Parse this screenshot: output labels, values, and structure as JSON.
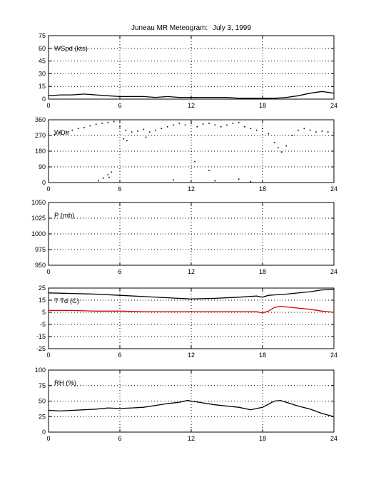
{
  "figure": {
    "title_station": "Juneau MR Meteogram:",
    "title_date": "July   3, 1999"
  },
  "chart_data": [
    {
      "type": "line",
      "label": "WSpd (kts)",
      "xlim": [
        0,
        24
      ],
      "ylim": [
        0,
        75
      ],
      "xticks": [
        "0",
        "6",
        "12",
        "18",
        "24"
      ],
      "yticks": [
        "0",
        "15",
        "30",
        "45",
        "60",
        "75"
      ],
      "grid": true,
      "series": [
        {
          "color": "#000000",
          "points": [
            [
              0,
              4
            ],
            [
              1,
              5
            ],
            [
              2,
              5
            ],
            [
              3,
              6
            ],
            [
              4,
              5
            ],
            [
              5,
              4
            ],
            [
              6,
              3
            ],
            [
              7,
              3
            ],
            [
              8,
              3
            ],
            [
              9,
              2
            ],
            [
              10,
              3
            ],
            [
              11,
              2
            ],
            [
              12,
              2
            ],
            [
              13,
              2
            ],
            [
              14,
              2
            ],
            [
              15,
              2
            ],
            [
              16,
              1
            ],
            [
              17,
              1
            ],
            [
              18,
              1
            ],
            [
              19,
              1
            ],
            [
              20,
              2
            ],
            [
              21,
              4
            ],
            [
              22,
              7
            ],
            [
              23,
              9
            ],
            [
              23.5,
              8
            ],
            [
              24,
              7
            ]
          ]
        }
      ]
    },
    {
      "type": "scatter",
      "label": "WDir",
      "xlim": [
        0,
        24
      ],
      "ylim": [
        0,
        360
      ],
      "xticks": [
        "0",
        "6",
        "12",
        "18",
        "24"
      ],
      "yticks": [
        "0",
        "90",
        "180",
        "270",
        "360"
      ],
      "grid": true,
      "series": [
        {
          "color": "#000000",
          "points": [
            [
              0,
              280
            ],
            [
              0.5,
              275
            ],
            [
              1,
              285
            ],
            [
              1.5,
              290
            ],
            [
              2,
              300
            ],
            [
              2.5,
              310
            ],
            [
              3,
              315
            ],
            [
              3.5,
              325
            ],
            [
              4,
              335
            ],
            [
              4.5,
              340
            ],
            [
              5,
              345
            ],
            [
              5.5,
              350
            ],
            [
              6,
              320
            ],
            [
              6.5,
              300
            ],
            [
              7,
              290
            ],
            [
              7.5,
              295
            ],
            [
              8,
              305
            ],
            [
              8.5,
              290
            ],
            [
              9,
              300
            ],
            [
              9.5,
              310
            ],
            [
              10,
              320
            ],
            [
              10.5,
              330
            ],
            [
              11,
              340
            ],
            [
              11.5,
              330
            ],
            [
              12,
              340
            ],
            [
              12.5,
              320
            ],
            [
              13,
              335
            ],
            [
              13.5,
              340
            ],
            [
              14,
              330
            ],
            [
              14.5,
              320
            ],
            [
              15,
              330
            ],
            [
              15.5,
              340
            ],
            [
              16,
              345
            ],
            [
              16.5,
              320
            ],
            [
              17,
              310
            ],
            [
              17.5,
              300
            ],
            [
              18,
              310
            ],
            [
              18.5,
              280
            ],
            [
              19,
              230
            ],
            [
              19.3,
              200
            ],
            [
              19.6,
              175
            ],
            [
              20,
              210
            ],
            [
              20.5,
              270
            ],
            [
              21,
              300
            ],
            [
              21.5,
              310
            ],
            [
              22,
              300
            ],
            [
              22.5,
              290
            ],
            [
              23,
              295
            ],
            [
              23.5,
              290
            ],
            [
              24,
              285
            ],
            [
              4.2,
              10
            ],
            [
              4.6,
              25
            ],
            [
              5,
              45
            ],
            [
              5.3,
              60
            ],
            [
              5.1,
              30
            ],
            [
              6.3,
              250
            ],
            [
              6.6,
              240
            ],
            [
              8.2,
              260
            ],
            [
              10.5,
              15
            ],
            [
              14,
              10
            ],
            [
              16,
              20
            ],
            [
              17,
              5
            ],
            [
              12.3,
              120
            ],
            [
              13.5,
              70
            ]
          ]
        }
      ]
    },
    {
      "type": "line",
      "label": "P (mb)",
      "xlim": [
        0,
        24
      ],
      "ylim": [
        950,
        1050
      ],
      "xticks": [
        "0",
        "6",
        "12",
        "18",
        "24"
      ],
      "yticks": [
        "950",
        "975",
        "1000",
        "1025",
        "1050"
      ],
      "grid": true,
      "series": []
    },
    {
      "type": "line",
      "label": "T Td (C)",
      "xlim": [
        0,
        24
      ],
      "ylim": [
        -25,
        25
      ],
      "xticks": [
        "0",
        "6",
        "12",
        "18",
        "24"
      ],
      "yticks": [
        "-25",
        "-15",
        "-5",
        "5",
        "15",
        "25"
      ],
      "grid": true,
      "series": [
        {
          "color": "#000000",
          "points": [
            [
              0,
              21
            ],
            [
              2,
              20.5
            ],
            [
              4,
              20
            ],
            [
              6,
              19
            ],
            [
              8,
              18
            ],
            [
              10,
              17
            ],
            [
              12,
              16
            ],
            [
              14,
              16.5
            ],
            [
              16,
              17.5
            ],
            [
              17.5,
              18.5
            ],
            [
              18,
              17.5
            ],
            [
              18.5,
              19
            ],
            [
              20,
              20
            ],
            [
              22,
              22
            ],
            [
              23,
              23.5
            ],
            [
              24,
              24
            ]
          ]
        },
        {
          "color": "#dd0000",
          "points": [
            [
              0,
              6.5
            ],
            [
              2,
              6.5
            ],
            [
              4,
              6
            ],
            [
              6,
              6
            ],
            [
              8,
              5.5
            ],
            [
              10,
              5.5
            ],
            [
              12,
              5.5
            ],
            [
              14,
              5.5
            ],
            [
              16,
              5.5
            ],
            [
              17.5,
              5.5
            ],
            [
              18,
              4.5
            ],
            [
              18.5,
              6
            ],
            [
              19,
              9
            ],
            [
              19.5,
              10
            ],
            [
              20,
              9.5
            ],
            [
              21,
              8.5
            ],
            [
              22,
              7.5
            ],
            [
              23,
              6
            ],
            [
              24,
              5
            ]
          ]
        }
      ]
    },
    {
      "type": "line",
      "label": "RH (%)",
      "xlim": [
        0,
        24
      ],
      "ylim": [
        0,
        100
      ],
      "xticks": [
        "0",
        "6",
        "12",
        "18",
        "24"
      ],
      "yticks": [
        "0",
        "25",
        "50",
        "75",
        "100"
      ],
      "grid": true,
      "series": [
        {
          "color": "#000000",
          "points": [
            [
              0,
              35
            ],
            [
              1,
              34
            ],
            [
              2,
              35
            ],
            [
              3,
              36
            ],
            [
              4,
              37
            ],
            [
              5,
              39
            ],
            [
              6,
              38
            ],
            [
              7,
              39
            ],
            [
              8,
              40
            ],
            [
              9,
              43
            ],
            [
              10,
              46
            ],
            [
              11,
              48
            ],
            [
              11.7,
              51
            ],
            [
              12,
              50
            ],
            [
              13,
              47
            ],
            [
              14,
              44
            ],
            [
              15,
              42
            ],
            [
              16,
              40
            ],
            [
              17,
              36
            ],
            [
              17.5,
              38
            ],
            [
              18,
              40
            ],
            [
              19,
              50
            ],
            [
              19.5,
              51
            ],
            [
              20,
              48
            ],
            [
              21,
              42
            ],
            [
              22,
              37
            ],
            [
              23,
              30
            ],
            [
              24,
              25
            ]
          ]
        }
      ]
    }
  ]
}
